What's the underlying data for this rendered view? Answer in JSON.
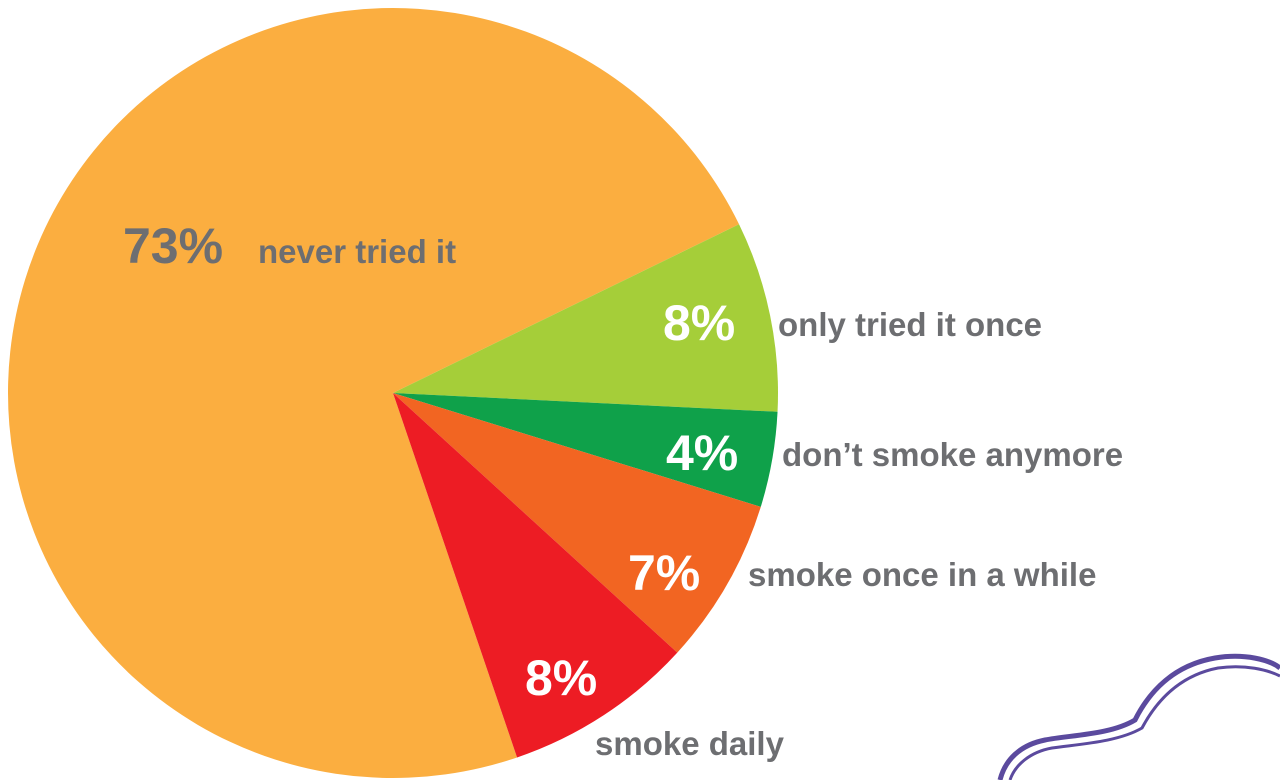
{
  "chart_data": {
    "type": "pie",
    "categories": [
      "never tried it",
      "only tried it once",
      "don’t smoke anymore",
      "smoke once in a while",
      "smoke daily"
    ],
    "values": [
      73,
      8,
      4,
      7,
      8
    ],
    "value_labels": [
      "73%",
      "8%",
      "4%",
      "7%",
      "8%"
    ],
    "colors": [
      "#fbae40",
      "#a5ce39",
      "#0fa14a",
      "#f26522",
      "#ed1c24"
    ]
  }
}
